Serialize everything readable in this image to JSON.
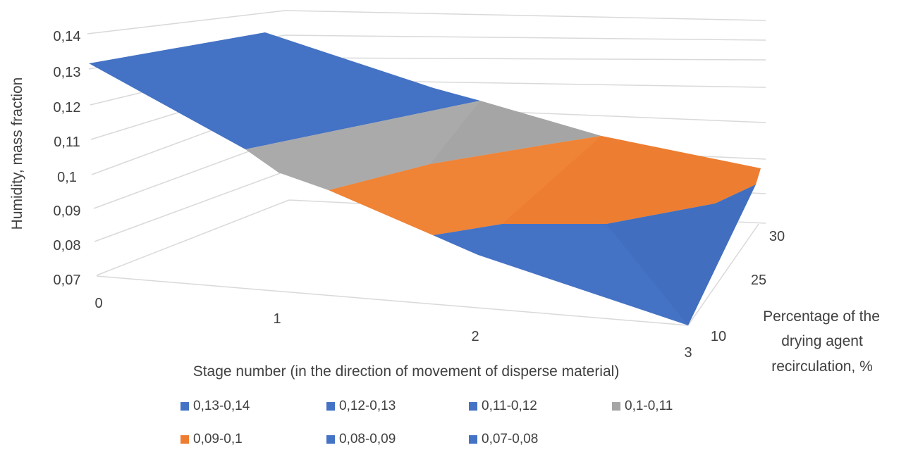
{
  "chart_data": {
    "type": "surface",
    "xlabel": "Stage number (in the direction of movement of disperse material)",
    "ylabel": "Humidity, mass fraction",
    "zlabel": "Percentage of the drying agent recirculation, %",
    "zlabel_lines": [
      "Percentage of the",
      "drying agent",
      "recirculation, %"
    ],
    "x_ticks": [
      "0",
      "1",
      "2",
      "3"
    ],
    "y_ticks": [
      "0,07",
      "0,08",
      "0,09",
      "0,1",
      "0,11",
      "0,12",
      "0,13",
      "0,14"
    ],
    "z_ticks": [
      "10",
      "25",
      "30"
    ],
    "ylim": [
      0.07,
      0.14
    ],
    "colors": {
      "blue": "#4472C4",
      "gray": "#A5A5A5",
      "orange": "#ED7D31",
      "grid": "#D9D9D9",
      "text": "#404040"
    },
    "legend": [
      {
        "label": "0,13-0,14",
        "color": "#4472C4"
      },
      {
        "label": "0,12-0,13",
        "color": "#4472C4"
      },
      {
        "label": "0,11-0,12",
        "color": "#4472C4"
      },
      {
        "label": "0,1-0,11",
        "color": "#A5A5A5"
      },
      {
        "label": "0,09-0,1",
        "color": "#ED7D31"
      },
      {
        "label": "0,08-0,09",
        "color": "#4472C4"
      },
      {
        "label": "0,07-0,08",
        "color": "#4472C4"
      }
    ],
    "legend_placement": "bottom",
    "surface_bands": [
      {
        "range": "0,13-0,14",
        "color": "#4472C4"
      },
      {
        "range": "0,1-0,11",
        "color": "#A5A5A5"
      },
      {
        "range": "0,09-0,1",
        "color": "#ED7D31"
      },
      {
        "range": "0,07-0,08",
        "color": "#4472C4"
      }
    ]
  }
}
